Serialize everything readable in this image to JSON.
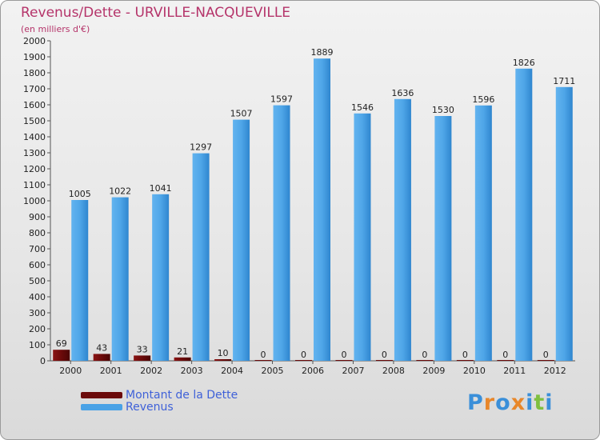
{
  "header": {
    "title": "Revenus/Dette - URVILLE-NACQUEVILLE",
    "subtitle": "(en milliers d'€)"
  },
  "legend": {
    "items": [
      {
        "label": "Montant de la Dette",
        "color": "#6b0a0a"
      },
      {
        "label": "Revenus",
        "color": "#4aa2e6"
      }
    ]
  },
  "logo": {
    "text": "Proxiti",
    "letter_colors": [
      "#3a8fd9",
      "#e8872a",
      "#3a8fd9",
      "#e8872a",
      "#3a8fd9",
      "#7fbf3f",
      "#3a8fd9"
    ]
  },
  "chart_data": {
    "type": "bar",
    "title": "Revenus/Dette - URVILLE-NACQUEVILLE",
    "ylabel": "(en milliers d'€)",
    "xlabel": "",
    "ylim": [
      0,
      2000
    ],
    "ytick_step": 100,
    "grid": false,
    "categories": [
      "2000",
      "2001",
      "2002",
      "2003",
      "2004",
      "2005",
      "2006",
      "2007",
      "2008",
      "2009",
      "2010",
      "2011",
      "2012"
    ],
    "series": [
      {
        "name": "Montant de la Dette",
        "color": "#6b0a0a",
        "values": [
          69,
          43,
          33,
          21,
          10,
          0,
          0,
          0,
          0,
          0,
          0,
          0,
          0
        ]
      },
      {
        "name": "Revenus",
        "color": "#4aa2e6",
        "values": [
          1005,
          1022,
          1041,
          1297,
          1507,
          1597,
          1889,
          1546,
          1636,
          1530,
          1596,
          1826,
          1711
        ]
      }
    ]
  }
}
